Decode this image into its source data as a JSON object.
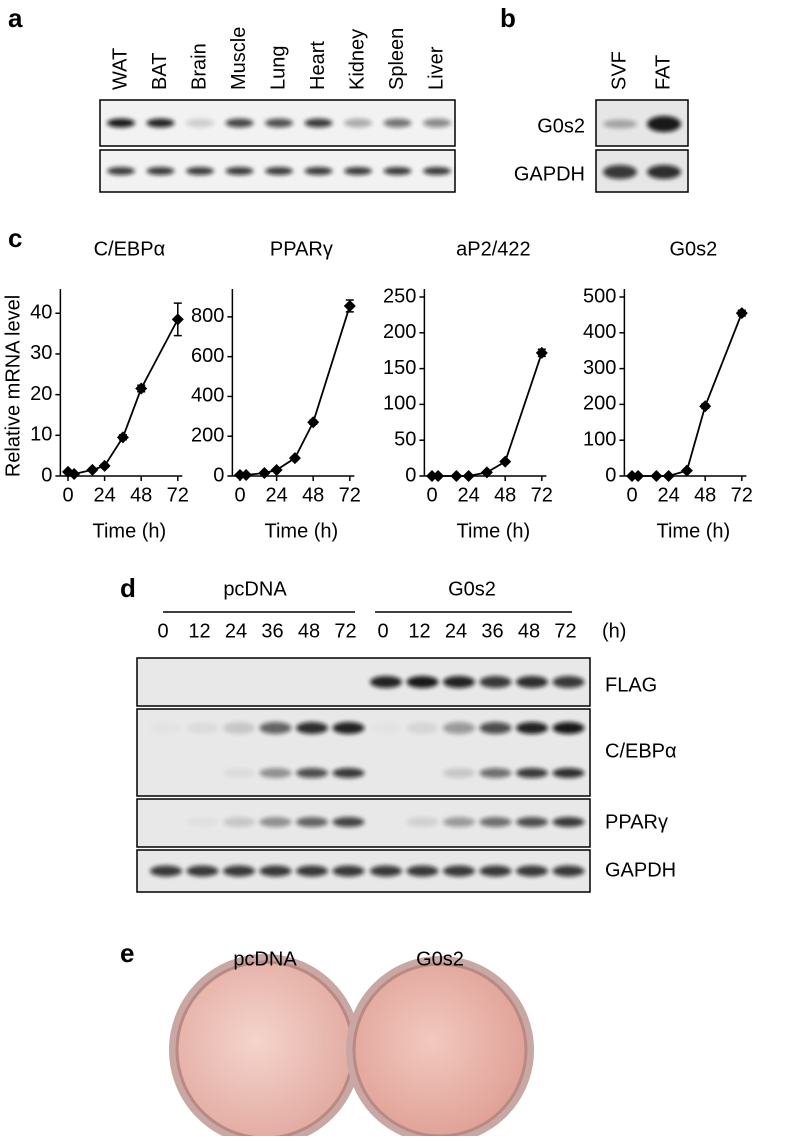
{
  "panel_a": {
    "label": "a",
    "lanes": [
      "WAT",
      "BAT",
      "Brain",
      "Muscle",
      "Lung",
      "Heart",
      "Kidney",
      "Spleen",
      "Liver"
    ]
  },
  "panel_b": {
    "label": "b",
    "lanes": [
      "SVF",
      "FAT"
    ],
    "rows": [
      "G0s2",
      "GAPDH"
    ]
  },
  "panel_c": {
    "label": "c"
  },
  "chart_data": [
    {
      "type": "line",
      "title": "C/EBPα",
      "ylabel": "Relative mRNA level",
      "xlabel": "Time (h)",
      "color": "#000000",
      "x": [
        0,
        4,
        16,
        24,
        36,
        48,
        72
      ],
      "values": [
        1,
        0.5,
        1.5,
        2.5,
        9.5,
        21.5,
        38.5
      ],
      "errors": [
        0.3,
        0.2,
        0.3,
        0.4,
        0.6,
        0.8,
        4
      ],
      "xlim": [
        -5,
        75
      ],
      "xticks": [
        0,
        24,
        48,
        72
      ],
      "ylim": [
        0,
        44
      ],
      "yticks": [
        0,
        10,
        20,
        30,
        40
      ]
    },
    {
      "type": "line",
      "title": "PPARγ",
      "xlabel": "Time (h)",
      "color": "#000000",
      "x": [
        0,
        4,
        16,
        24,
        36,
        48,
        72
      ],
      "values": [
        5,
        5,
        15,
        30,
        90,
        270,
        855
      ],
      "errors": [
        3,
        3,
        5,
        6,
        8,
        10,
        30
      ],
      "xlim": [
        -5,
        75
      ],
      "xticks": [
        0,
        24,
        48,
        72
      ],
      "ylim": [
        0,
        900
      ],
      "yticks": [
        0,
        200,
        400,
        600,
        800
      ]
    },
    {
      "type": "line",
      "title": "aP2/422",
      "xlabel": "Time (h)",
      "color": "#000000",
      "x": [
        0,
        4,
        16,
        24,
        36,
        48,
        72
      ],
      "values": [
        0,
        0,
        0,
        0,
        5,
        20,
        172
      ],
      "errors": [
        0.5,
        0.5,
        0.5,
        0.5,
        1,
        2,
        5
      ],
      "xlim": [
        -5,
        75
      ],
      "xticks": [
        0,
        24,
        48,
        72
      ],
      "ylim": [
        0,
        250
      ],
      "yticks": [
        0,
        50,
        100,
        150,
        200,
        250
      ]
    },
    {
      "type": "line",
      "title": "G0s2",
      "xlabel": "Time (h)",
      "color": "#000000",
      "x": [
        0,
        4,
        16,
        24,
        36,
        48,
        72
      ],
      "values": [
        0,
        0,
        0,
        0,
        15,
        195,
        455
      ],
      "errors": [
        1,
        1,
        1,
        1,
        3,
        6,
        8
      ],
      "xlim": [
        -5,
        75
      ],
      "xticks": [
        0,
        24,
        48,
        72
      ],
      "ylim": [
        0,
        500
      ],
      "yticks": [
        0,
        100,
        200,
        300,
        400,
        500
      ]
    }
  ],
  "panel_d": {
    "label": "d",
    "groups": [
      {
        "name": "pcDNA",
        "times": [
          "0",
          "12",
          "24",
          "36",
          "48",
          "72"
        ]
      },
      {
        "name": "G0s2",
        "times": [
          "0",
          "12",
          "24",
          "36",
          "48",
          "72"
        ]
      }
    ],
    "unit": "(h)",
    "rows": [
      "FLAG",
      "C/EBPα",
      "PPARγ",
      "GAPDH"
    ]
  },
  "panel_e": {
    "label": "e",
    "dishes": [
      "pcDNA",
      "G0s2"
    ]
  }
}
